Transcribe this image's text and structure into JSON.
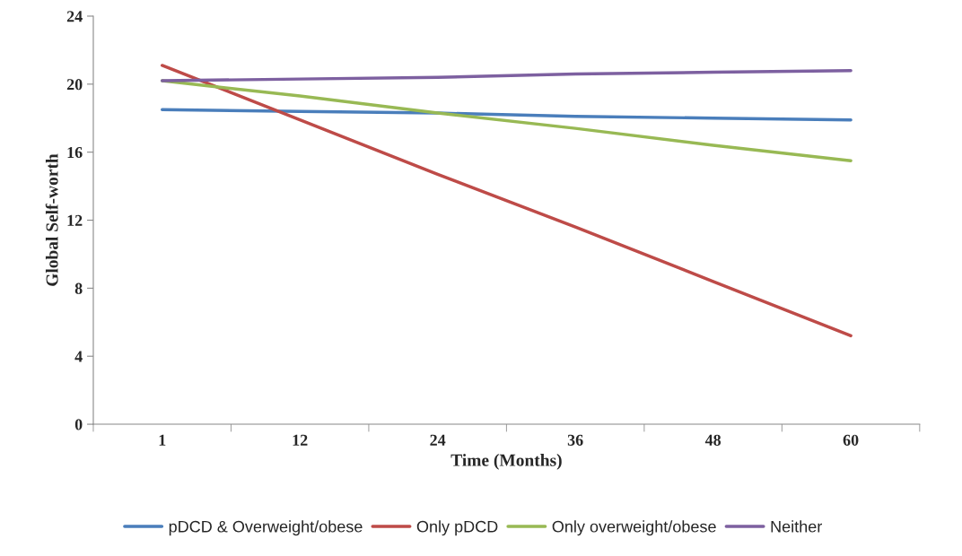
{
  "chart_data": {
    "type": "line",
    "xlabel": "Time (Months)",
    "ylabel": "Global Self-worth",
    "categories": [
      "1",
      "12",
      "24",
      "36",
      "48",
      "60"
    ],
    "series": [
      {
        "name": "pDCD & Overweight/obese",
        "color": "#4a7ebb",
        "values": [
          18.5,
          18.4,
          18.3,
          18.1,
          18.0,
          17.9
        ]
      },
      {
        "name": "Only pDCD",
        "color": "#be4b48",
        "values": [
          21.1,
          17.9,
          14.7,
          11.6,
          8.4,
          5.2
        ]
      },
      {
        "name": "Only overweight/obese",
        "color": "#98b954",
        "values": [
          20.2,
          19.3,
          18.3,
          17.4,
          16.4,
          15.5
        ]
      },
      {
        "name": "Neither",
        "color": "#7d60a0",
        "values": [
          20.2,
          20.3,
          20.4,
          20.6,
          20.7,
          20.8
        ]
      }
    ],
    "ylim": [
      0,
      24
    ],
    "yticks": [
      0,
      4,
      8,
      12,
      16,
      20,
      24
    ],
    "grid": false,
    "legend": "bottom",
    "marker": "none",
    "line_style": "solid"
  }
}
